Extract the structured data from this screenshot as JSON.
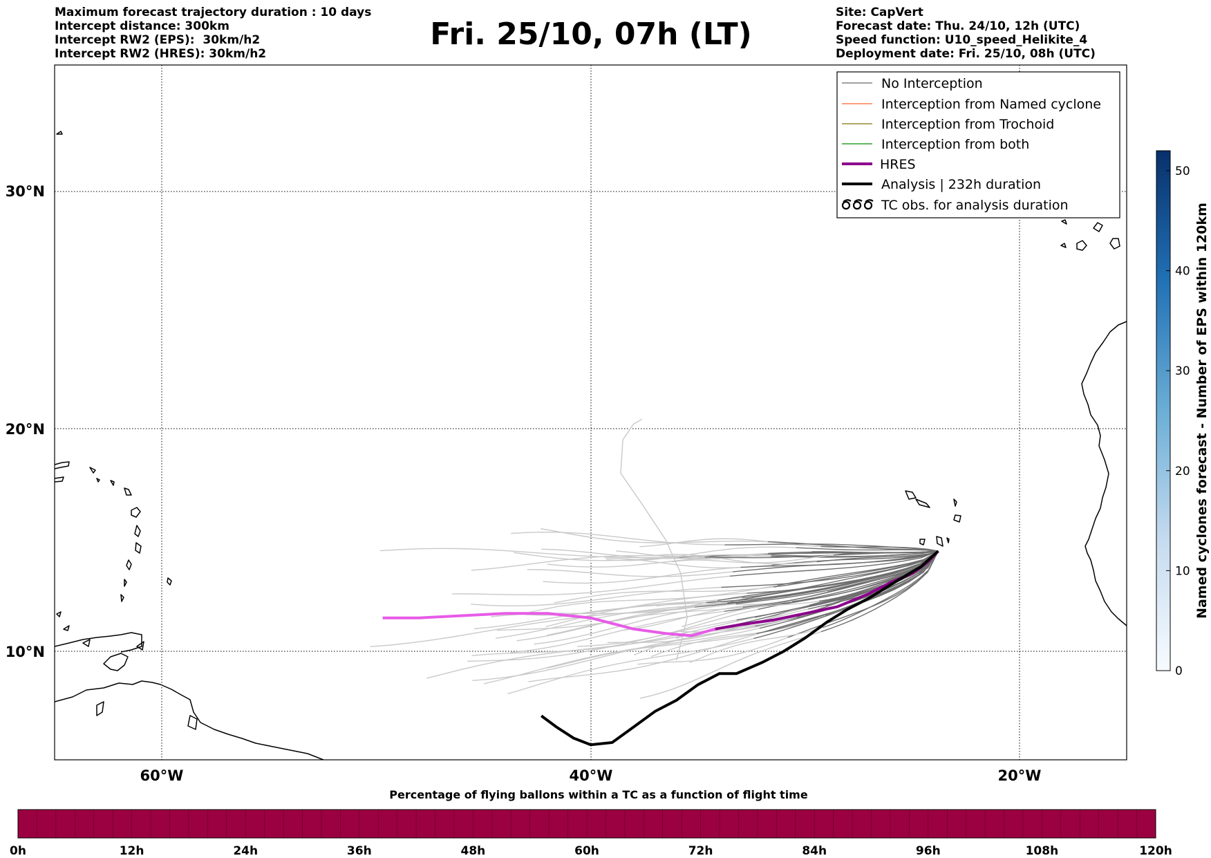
{
  "header": {
    "left_lines": [
      "Maximum forecast trajectory duration : 10 days",
      "Intercept distance: 300km",
      "Intercept RW2 (EPS):  30km/h2",
      "Intercept RW2 (HRES): 30km/h2"
    ],
    "title": "Fri. 25/10, 07h (LT)",
    "right_lines": [
      "Site: CapVert",
      "Forecast date: Thu. 24/10, 12h (UTC)",
      "Speed function: U10_speed_Helikite_4",
      "Deployment date: Fri. 25/10, 08h (UTC)"
    ]
  },
  "map": {
    "lat_labels": [
      "30°N",
      "20°N",
      "10°N"
    ],
    "lon_labels": [
      "60°W",
      "40°W",
      "20°W"
    ],
    "grid": true
  },
  "legend": {
    "items": [
      {
        "label": "No Interception",
        "color": "#808080",
        "style": "thin"
      },
      {
        "label": "Interception from Named cyclone",
        "color": "#ff7f50",
        "style": "thin"
      },
      {
        "label": "Interception from Trochoid",
        "color": "#9a8a30",
        "style": "thin"
      },
      {
        "label": "Interception from both",
        "color": "#2ca02c",
        "style": "thin"
      },
      {
        "label": "HRES",
        "color": "#8b008b",
        "style": "thick"
      },
      {
        "label": "Analysis | 232h duration",
        "color": "#000000",
        "style": "thick"
      },
      {
        "label": "TC obs. for analysis duration",
        "color": "#000000",
        "style": "tc-symbol"
      }
    ]
  },
  "colorbar_right": {
    "label": "Named cyclones forecast - Number of EPS within 120km",
    "ticks": [
      "0",
      "10",
      "20",
      "30",
      "40",
      "50"
    ]
  },
  "colorbar_bottom": {
    "title": "Percentage of flying ballons within a TC as a function of flight time",
    "ticks": [
      "0h",
      "12h",
      "24h",
      "36h",
      "48h",
      "60h",
      "72h",
      "84h",
      "96h",
      "108h",
      "120h"
    ],
    "fill_color": "#9b0040"
  },
  "chart_data": {
    "type": "map-trajectories",
    "projection": "lat-lon",
    "lon_range": [
      -65,
      -15
    ],
    "lat_range": [
      5.5,
      35
    ],
    "grid": true,
    "launch_point": {
      "lon": -23.8,
      "lat": 14.5
    },
    "hres_track": [
      [
        -23.8,
        14.5
      ],
      [
        -24.3,
        14.0
      ],
      [
        -25.0,
        13.5
      ],
      [
        -26.0,
        13.1
      ],
      [
        -27.0,
        12.6
      ],
      [
        -28.5,
        12.0
      ],
      [
        -30.0,
        11.7
      ],
      [
        -31.5,
        11.4
      ],
      [
        -33.0,
        11.2
      ],
      [
        -34.2,
        11.0
      ],
      [
        -35.3,
        10.7
      ],
      [
        -36.5,
        10.8
      ],
      [
        -38.0,
        11.0
      ],
      [
        -40.0,
        11.5
      ],
      [
        -42.0,
        11.7
      ],
      [
        -44.0,
        11.7
      ],
      [
        -46.0,
        11.6
      ],
      [
        -48.0,
        11.5
      ],
      [
        -49.7,
        11.5
      ]
    ],
    "analysis_track": [
      [
        -23.8,
        14.5
      ],
      [
        -24.6,
        13.8
      ],
      [
        -26.0,
        13.0
      ],
      [
        -27.0,
        12.4
      ],
      [
        -28.0,
        11.9
      ],
      [
        -29.0,
        11.3
      ],
      [
        -30.0,
        10.6
      ],
      [
        -31.0,
        10.0
      ],
      [
        -32.0,
        9.5
      ],
      [
        -33.2,
        9.0
      ],
      [
        -34.0,
        9.0
      ],
      [
        -35.0,
        8.5
      ],
      [
        -36.0,
        7.8
      ],
      [
        -37.0,
        7.3
      ],
      [
        -38.0,
        6.6
      ],
      [
        -39.0,
        5.9
      ],
      [
        -40.0,
        5.8
      ],
      [
        -40.8,
        6.1
      ],
      [
        -41.6,
        6.6
      ],
      [
        -42.3,
        7.1
      ]
    ]
  },
  "colors": {
    "hres_cont": "#e75be7",
    "eps_near": "#6e6e6e",
    "eps_far": "#c9c9c9",
    "frame": "#000000",
    "colorbar_top": "#08306b",
    "colorbar_bottom": "#f7fbff"
  }
}
